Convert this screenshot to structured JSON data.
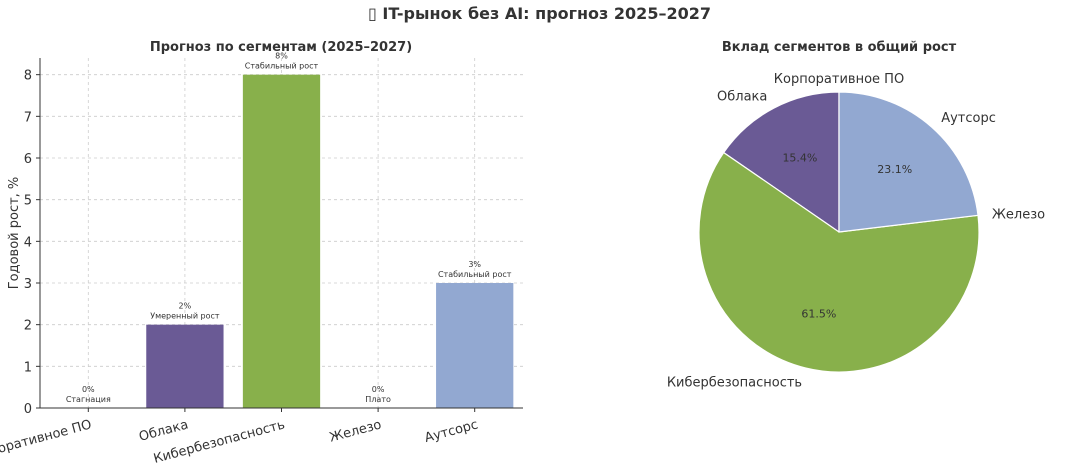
{
  "figure": {
    "title_icon": "chart-emoji-icon",
    "title_icon_glyph": "▯",
    "title": "IT-рынок без AI: прогноз 2025–2027"
  },
  "chart_data": [
    {
      "type": "bar",
      "title": "Прогноз по сегментам (2025–2027)",
      "xlabel": "",
      "ylabel": "Годовой рост, %",
      "ylim": [
        0,
        8.4
      ],
      "yticks": [
        0,
        1,
        2,
        3,
        4,
        5,
        6,
        7,
        8
      ],
      "grid": true,
      "categories": [
        "Корпоративное ПО",
        "Облака",
        "Кибербезопасность",
        "Железо",
        "Аутсорс"
      ],
      "values": [
        0,
        2,
        8,
        0,
        3
      ],
      "value_labels": [
        "0%",
        "2%",
        "8%",
        "0%",
        "3%"
      ],
      "status_labels": [
        "Стагнация",
        "Умеренный рост",
        "Стабильный рост",
        "Плато",
        "Стабильный рост"
      ],
      "colors": [
        "#6a5a95",
        "#6a5a95",
        "#88b04b",
        "#6a5a95",
        "#92a8d1"
      ]
    },
    {
      "type": "pie",
      "title": "Вклад сегментов в общий рост",
      "labels": [
        "Корпоративное ПО",
        "Облака",
        "Кибербезопасность",
        "Железо",
        "Аутсорс"
      ],
      "values": [
        0,
        15.4,
        61.5,
        0,
        23.1
      ],
      "pct_labels": [
        "",
        "15.4%",
        "61.5%",
        "",
        "23.1%"
      ],
      "colors": [
        "#6a5a95",
        "#6a5a95",
        "#88b04b",
        "#6a5a95",
        "#92a8d1"
      ],
      "start_angle_deg": 90,
      "direction": "counterclockwise"
    }
  ]
}
